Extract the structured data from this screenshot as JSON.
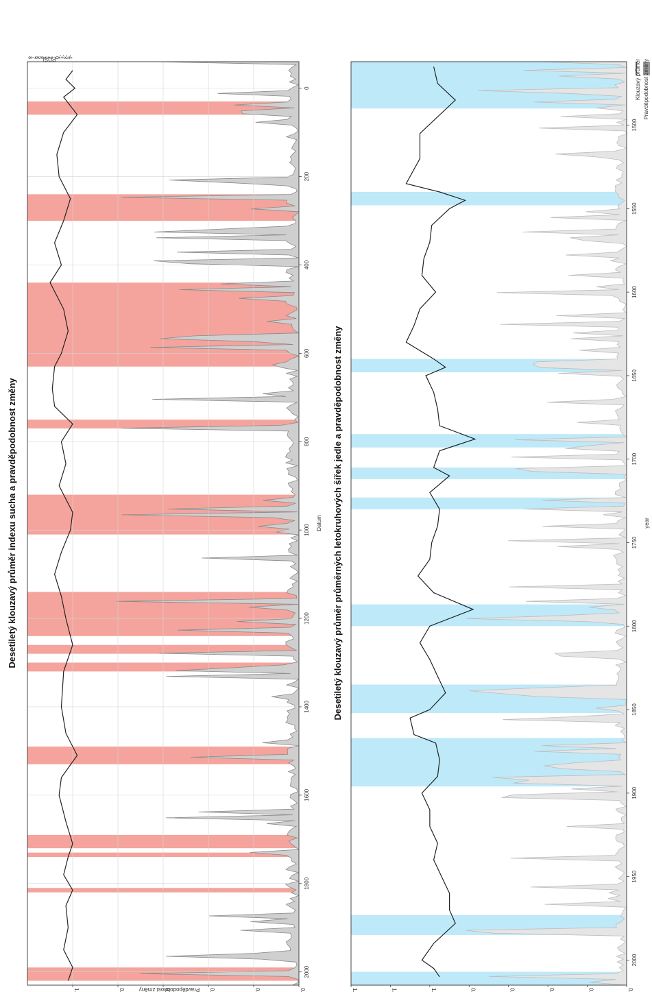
{
  "chart_data": [
    {
      "type": "line",
      "title": "Desetiletý klouzavý průměr indexu sucha a pravděpodobnost změny",
      "xlabel": "Datum",
      "ylabel": "Pravděpodobnost změny",
      "y2label": "PDSI",
      "xlim": [
        -60,
        2030
      ],
      "ylim": [
        0,
        1.2
      ],
      "x_ticks": [
        "0",
        "200",
        "400",
        "600",
        "800",
        "1000",
        "1200",
        "1400",
        "1600",
        "1800",
        "2000"
      ],
      "y_ticks": [
        "0.0",
        "0.2",
        "0.4",
        "0.6",
        "0.8",
        "1.0"
      ],
      "y2_ticks": [
        "8",
        "7",
        "6",
        "5",
        "4",
        "3",
        "2",
        "1",
        "0",
        "-1",
        "-2",
        "-3",
        "-4"
      ],
      "grid": true,
      "band_color": "#f4a49d",
      "bands": [
        [
          30,
          60
        ],
        [
          240,
          300
        ],
        [
          440,
          630
        ],
        [
          750,
          770
        ],
        [
          920,
          1010
        ],
        [
          1140,
          1240
        ],
        [
          1260,
          1280
        ],
        [
          1300,
          1320
        ],
        [
          1490,
          1530
        ],
        [
          1690,
          1720
        ],
        [
          1730,
          1740
        ],
        [
          1810,
          1820
        ],
        [
          1990,
          2020
        ]
      ],
      "series": [
        {
          "values": [
            [
              -40,
              1.0
            ],
            [
              -20,
              1.03
            ],
            [
              0,
              0.99
            ],
            [
              20,
              1.04
            ],
            [
              60,
              0.98
            ],
            [
              100,
              1.04
            ],
            [
              150,
              1.07
            ],
            [
              200,
              1.06
            ],
            [
              250,
              1.01
            ],
            [
              300,
              1.04
            ],
            [
              350,
              1.08
            ],
            [
              400,
              1.05
            ],
            [
              440,
              1.1
            ],
            [
              500,
              1.04
            ],
            [
              550,
              1.02
            ],
            [
              600,
              1.05
            ],
            [
              630,
              1.08
            ],
            [
              680,
              1.09
            ],
            [
              720,
              1.08
            ],
            [
              760,
              1.0
            ],
            [
              800,
              1.05
            ],
            [
              850,
              1.03
            ],
            [
              900,
              1.06
            ],
            [
              960,
              1.0
            ],
            [
              1000,
              1.01
            ],
            [
              1050,
              1.05
            ],
            [
              1100,
              1.08
            ],
            [
              1150,
              1.05
            ],
            [
              1200,
              1.03
            ],
            [
              1260,
              1.0
            ],
            [
              1320,
              1.04
            ],
            [
              1400,
              1.05
            ],
            [
              1460,
              1.03
            ],
            [
              1510,
              0.98
            ],
            [
              1560,
              1.05
            ],
            [
              1600,
              1.06
            ],
            [
              1660,
              1.03
            ],
            [
              1710,
              1.0
            ],
            [
              1740,
              1.02
            ],
            [
              1780,
              1.04
            ],
            [
              1815,
              1.0
            ],
            [
              1850,
              1.03
            ],
            [
              1900,
              1.02
            ],
            [
              1950,
              1.04
            ],
            [
              1990,
              1.0
            ],
            [
              2020,
              1.02
            ]
          ]
        }
      ]
    },
    {
      "type": "line",
      "title": "Desetiletý klouzavý průměr průměrných letokruhových šířek jedle a pravděpodobnost změny",
      "xlabel": "year",
      "ylabel": "",
      "xlim": [
        1462,
        2015
      ],
      "ylim": [
        0,
        1.4
      ],
      "x_ticks": [
        "1500",
        "1550",
        "1600",
        "1650",
        "1700",
        "1750",
        "1800",
        "1850",
        "1900",
        "1950",
        "2000"
      ],
      "y_ticks": [
        "0.0",
        "0.2",
        "0.4",
        "0.6",
        "0.8",
        "1.0",
        "1.2",
        "1.4"
      ],
      "grid": false,
      "band_color": "#bee9f8",
      "bands": [
        [
          1462,
          1490
        ],
        [
          1540,
          1548
        ],
        [
          1640,
          1648
        ],
        [
          1685,
          1693
        ],
        [
          1705,
          1712
        ],
        [
          1723,
          1730
        ],
        [
          1787,
          1800
        ],
        [
          1835,
          1852
        ],
        [
          1867,
          1896
        ],
        [
          1973,
          1985
        ],
        [
          2007,
          2015
        ]
      ],
      "series": [
        {
          "values": [
            [
              1465,
              0.98
            ],
            [
              1475,
              0.96
            ],
            [
              1485,
              0.87
            ],
            [
              1495,
              0.96
            ],
            [
              1505,
              1.05
            ],
            [
              1520,
              1.05
            ],
            [
              1535,
              1.12
            ],
            [
              1540,
              0.95
            ],
            [
              1545,
              0.82
            ],
            [
              1550,
              0.9
            ],
            [
              1560,
              0.99
            ],
            [
              1570,
              1.0
            ],
            [
              1580,
              1.03
            ],
            [
              1590,
              1.04
            ],
            [
              1600,
              0.97
            ],
            [
              1610,
              1.05
            ],
            [
              1620,
              1.08
            ],
            [
              1630,
              1.12
            ],
            [
              1640,
              0.98
            ],
            [
              1645,
              0.92
            ],
            [
              1650,
              1.02
            ],
            [
              1660,
              0.98
            ],
            [
              1670,
              0.96
            ],
            [
              1680,
              0.95
            ],
            [
              1688,
              0.77
            ],
            [
              1695,
              0.95
            ],
            [
              1705,
              0.98
            ],
            [
              1710,
              0.9
            ],
            [
              1720,
              1.0
            ],
            [
              1730,
              0.95
            ],
            [
              1740,
              0.96
            ],
            [
              1750,
              0.99
            ],
            [
              1760,
              1.0
            ],
            [
              1770,
              1.06
            ],
            [
              1780,
              0.98
            ],
            [
              1790,
              0.78
            ],
            [
              1800,
              1.0
            ],
            [
              1810,
              1.05
            ],
            [
              1820,
              1.0
            ],
            [
              1830,
              0.96
            ],
            [
              1840,
              0.92
            ],
            [
              1850,
              1.0
            ],
            [
              1855,
              1.1
            ],
            [
              1865,
              1.08
            ],
            [
              1870,
              0.97
            ],
            [
              1880,
              0.95
            ],
            [
              1890,
              0.96
            ],
            [
              1900,
              1.04
            ],
            [
              1910,
              1.0
            ],
            [
              1920,
              1.0
            ],
            [
              1930,
              0.96
            ],
            [
              1940,
              0.98
            ],
            [
              1950,
              0.94
            ],
            [
              1960,
              0.9
            ],
            [
              1970,
              0.9
            ],
            [
              1978,
              0.87
            ],
            [
              1990,
              0.98
            ],
            [
              2000,
              1.04
            ],
            [
              2005,
              0.98
            ],
            [
              2010,
              0.95
            ]
          ]
        }
      ]
    }
  ],
  "legend": {
    "line_label": "Klouzavý průměr",
    "area_label": "Pravděpodobnost změny"
  }
}
